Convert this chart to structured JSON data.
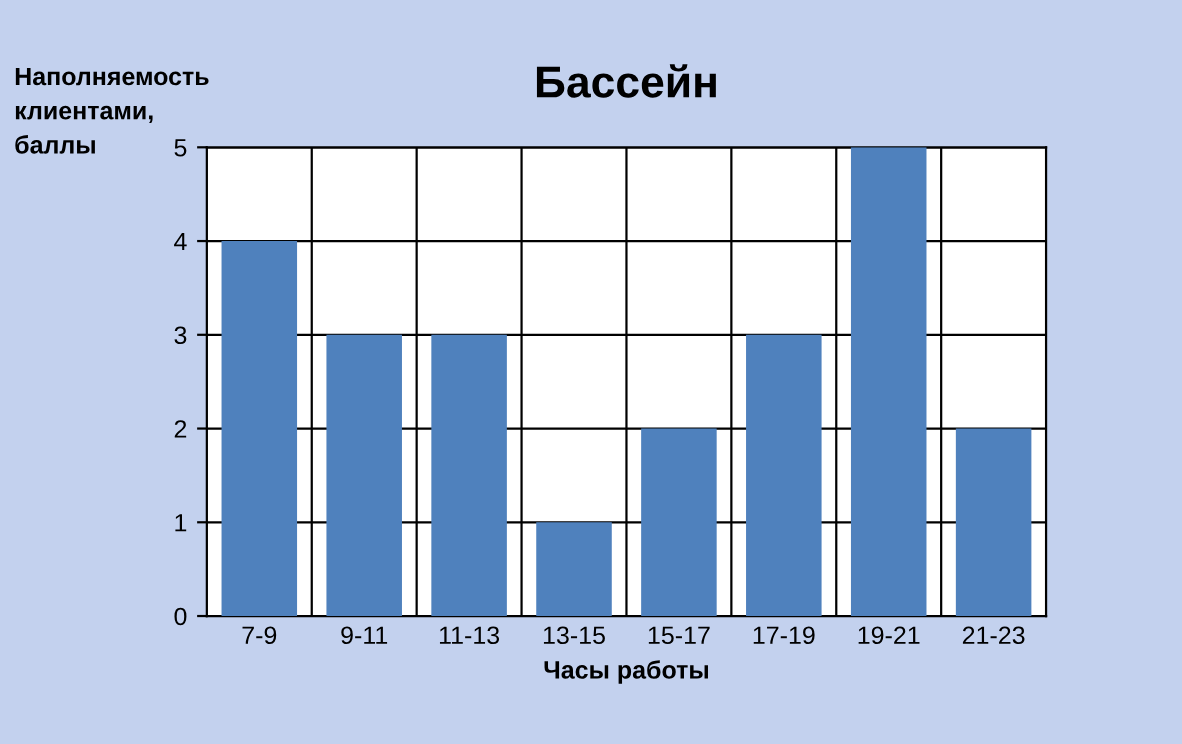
{
  "chart_data": {
    "type": "bar",
    "title": "Бассейн",
    "xlabel": "Часы работы",
    "ylabel": "Наполняемость\nклиентами,\nбаллы",
    "categories": [
      "7-9",
      "9-11",
      "11-13",
      "13-15",
      "15-17",
      "17-19",
      "19-21",
      "21-23"
    ],
    "values": [
      4,
      3,
      3,
      1,
      2,
      3,
      5,
      2
    ],
    "color": "#4f81bd",
    "ylim": [
      0,
      5
    ],
    "yticks": [
      0,
      1,
      2,
      3,
      4,
      5
    ],
    "grid": true
  }
}
